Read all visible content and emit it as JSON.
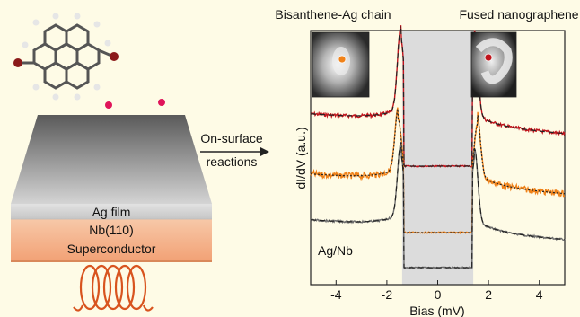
{
  "left_panel": {
    "layers": [
      "Ag film",
      "Nb(110)",
      "Superconductor"
    ],
    "arrow_label_line1": "On-surface",
    "arrow_label_line2": "reactions"
  },
  "right_panel": {
    "title_left": "Bisanthene-Ag chain",
    "title_right": "Fused nanographene",
    "curve_label": "Ag/Nb",
    "colors": {
      "red": "#c0141c",
      "orange": "#f08219",
      "gray": "#6e6e6e",
      "gap_shade": "#dcdcdc",
      "fit": "#222222"
    }
  },
  "chart_data": {
    "type": "line",
    "xlabel": "Bias (mV)",
    "ylabel": "dI/dV (a.u.)",
    "xlim": [
      -5,
      5
    ],
    "x_ticks": [
      "-4",
      "-2",
      "0",
      "2",
      "4"
    ],
    "shaded_gap": [
      -1.4,
      1.4
    ],
    "series": [
      {
        "color": "red",
        "peak_bias": 1.45,
        "offset": 2.0
      },
      {
        "color": "orange",
        "peak_bias": 1.55,
        "offset": 1.0
      },
      {
        "color": "gray",
        "peak_bias": 1.45,
        "offset": 0.0
      }
    ]
  }
}
